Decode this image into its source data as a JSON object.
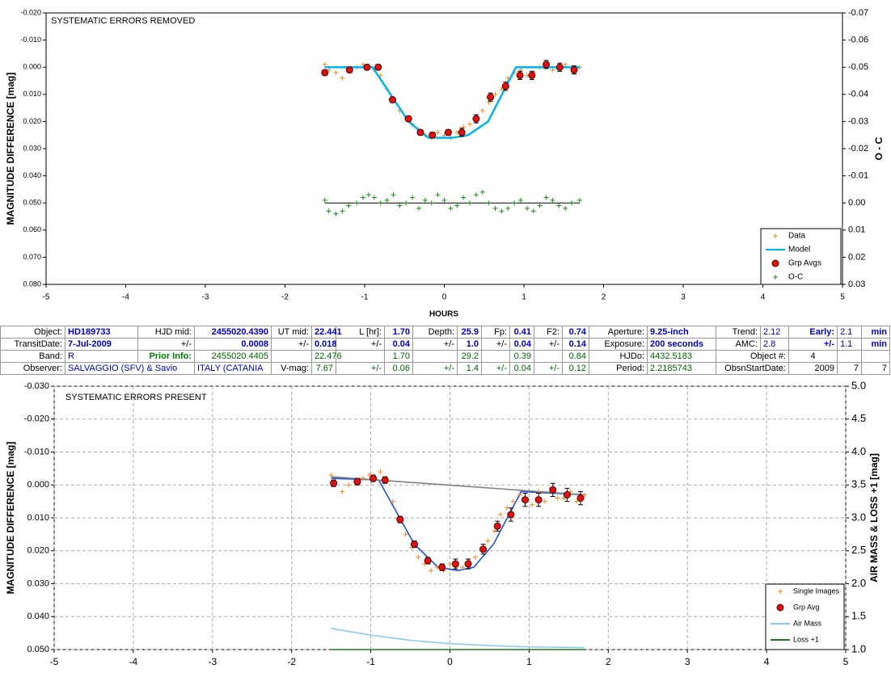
{
  "chart_data": [
    {
      "type": "scatter",
      "title": "SYSTEMATIC ERRORS REMOVED",
      "xlabel": "HOURS",
      "ylabel": "MAGNITUDE DIFFERENCE [mag]",
      "y2label": "O - C",
      "xlim": [
        -5,
        5
      ],
      "xticks": [
        -5,
        -4,
        -3,
        -2,
        -1,
        0,
        1,
        2,
        3,
        4,
        5
      ],
      "ylim": [
        0.08,
        -0.02
      ],
      "yticks": [
        {
          "value": -0.02,
          "label": "-0.020"
        },
        {
          "value": -0.01,
          "label": "-0.010"
        },
        {
          "value": 0,
          "label": "0.000"
        },
        {
          "value": 0.01,
          "label": "0.010"
        },
        {
          "value": 0.02,
          "label": "0.020"
        },
        {
          "value": 0.03,
          "label": "0.030"
        },
        {
          "value": 0.04,
          "label": "0.040"
        },
        {
          "value": 0.05,
          "label": "0.050"
        },
        {
          "value": 0.06,
          "label": "0.060"
        },
        {
          "value": 0.07,
          "label": "0.070"
        },
        {
          "value": 0.08,
          "label": "0.080"
        }
      ],
      "y2lim": [
        0.03,
        -0.07
      ],
      "y2ticks": [
        -0.07,
        -0.06,
        -0.05,
        -0.04,
        -0.03,
        -0.02,
        -0.01,
        {
          "value": 0,
          "label": "0.00"
        },
        0.01,
        0.02,
        0.03
      ],
      "grid": false,
      "legend": "lower right",
      "series": [
        {
          "name": "Data",
          "color": "#f08c1e",
          "marker": "plus",
          "x": [
            -1.5,
            -1.45,
            -1.36,
            -1.28,
            -1.2,
            -1.1,
            -1.02,
            -0.95,
            -0.88,
            -0.8,
            -0.72,
            -0.64,
            -0.56,
            -0.48,
            -0.4,
            -0.32,
            -0.24,
            -0.16,
            -0.08,
            0,
            0.08,
            0.16,
            0.24,
            0.32,
            0.4,
            0.48,
            0.56,
            0.64,
            0.72,
            0.8,
            0.88,
            0.96,
            1.04,
            1.12,
            1.2,
            1.28,
            1.36,
            1.44,
            1.52,
            1.6,
            1.7
          ],
          "values": [
            -0.001,
            0.001,
            0.002,
            0.004,
            0.001,
            0.0,
            -0.001,
            0.0,
            0.001,
            0.003,
            0.008,
            0.012,
            0.016,
            0.019,
            0.021,
            0.023,
            0.025,
            0.026,
            0.024,
            0.025,
            0.026,
            0.024,
            0.022,
            0.021,
            0.019,
            0.016,
            0.013,
            0.01,
            0.008,
            0.004,
            0.002,
            0.001,
            0.003,
            0.002,
            0.0,
            -0.001,
            0.001,
            0.0,
            -0.001,
            0.0,
            0.0
          ]
        },
        {
          "name": "Model",
          "color": "#00b4f0",
          "marker": "none",
          "x": [
            -1.5,
            -0.9,
            -0.45,
            -0.2,
            0.1,
            0.3,
            0.55,
            0.9,
            1.7
          ],
          "values": [
            0,
            0,
            0.02,
            0.026,
            0.026,
            0.025,
            0.02,
            0,
            0
          ]
        },
        {
          "name": "Grp Avgs",
          "color": "#e01010",
          "marker": "circle",
          "x": [
            -1.5,
            -1.19,
            -0.97,
            -0.83,
            -0.65,
            -0.45,
            -0.3,
            -0.15,
            0.05,
            0.22,
            0.4,
            0.58,
            0.77,
            0.95,
            1.1,
            1.28,
            1.45,
            1.63
          ],
          "values": [
            0.002,
            0.001,
            0.0,
            0.0,
            0.012,
            0.019,
            0.024,
            0.025,
            0.024,
            0.024,
            0.019,
            0.011,
            0.007,
            0.003,
            0.003,
            -0.001,
            0.0,
            0.001
          ],
          "errors": [
            0.001,
            0.001,
            0.001,
            0.001,
            0.001,
            0.001,
            0.001,
            0.001,
            0.001,
            0.0015,
            0.0015,
            0.0015,
            0.0015,
            0.0015,
            0.0015,
            0.0015,
            0.0015,
            0.0015
          ]
        },
        {
          "name": "O-C",
          "color": "#1e8c1e",
          "marker": "plus",
          "axis": "y2",
          "x": [
            -1.5,
            -1.45,
            -1.36,
            -1.28,
            -1.2,
            -1.1,
            -1.02,
            -0.95,
            -0.88,
            -0.8,
            -0.72,
            -0.64,
            -0.56,
            -0.48,
            -0.4,
            -0.32,
            -0.24,
            -0.16,
            -0.08,
            0,
            0.08,
            0.16,
            0.24,
            0.32,
            0.4,
            0.48,
            0.56,
            0.64,
            0.72,
            0.8,
            0.88,
            0.96,
            1.04,
            1.12,
            1.2,
            1.28,
            1.36,
            1.44,
            1.52,
            1.6,
            1.7
          ],
          "values": [
            -0.001,
            0.003,
            0.004,
            0.003,
            0.001,
            0.0,
            -0.002,
            -0.003,
            -0.002,
            0.0,
            -0.001,
            -0.003,
            0.001,
            0.0,
            -0.002,
            0.002,
            -0.001,
            0.0,
            -0.003,
            -0.001,
            0.002,
            0.001,
            -0.002,
            0.0,
            -0.003,
            -0.004,
            0.0,
            0.002,
            0.003,
            0.002,
            0.0,
            -0.001,
            0.002,
            0.003,
            0.001,
            -0.002,
            -0.001,
            0.001,
            0.002,
            0.0,
            -0.001
          ]
        }
      ]
    },
    {
      "type": "scatter",
      "title": "SYSTEMATIC ERRORS PRESENT",
      "ylabel": "MAGNITUDE DIFFERENCE [mag]",
      "y2label": "AIR MASS & LOSS +1 [mag]",
      "xlim": [
        -5,
        5
      ],
      "xticks": [
        -5,
        -4,
        -3,
        -2,
        -1,
        0,
        1,
        2,
        3,
        4,
        5
      ],
      "ylim": [
        0.05,
        -0.03
      ],
      "yticks": [
        {
          "value": -0.03,
          "label": "-0.030"
        },
        {
          "value": -0.02,
          "label": "-0.020"
        },
        {
          "value": -0.01,
          "label": "-0.010"
        },
        {
          "value": 0,
          "label": "0.000"
        },
        {
          "value": 0.01,
          "label": "0.010"
        },
        {
          "value": 0.02,
          "label": "0.020"
        },
        {
          "value": 0.03,
          "label": "0.030"
        },
        {
          "value": 0.04,
          "label": "0.040"
        },
        {
          "value": 0.05,
          "label": "0.050"
        }
      ],
      "y2lim": [
        1.0,
        5.0
      ],
      "y2ticks": [
        {
          "value": 1,
          "label": "1.0"
        },
        1.5,
        {
          "value": 2,
          "label": "2.0"
        },
        2.5,
        {
          "value": 3,
          "label": "3.0"
        },
        3.5,
        {
          "value": 4,
          "label": "4.0"
        },
        4.5,
        {
          "value": 5,
          "label": "5.0"
        }
      ],
      "grid": true,
      "legend": "lower right",
      "series": [
        {
          "color": "#1f4fe0",
          "marker": "none",
          "x": [
            -1.5,
            -0.9,
            -0.45,
            -0.15,
            0.1,
            0.3,
            0.55,
            0.9,
            1.7
          ],
          "values": [
            -0.002,
            -0.0015,
            0.018,
            0.025,
            0.026,
            0.025,
            0.018,
            0.002,
            0.003
          ]
        },
        {
          "color": "#808080",
          "marker": "none",
          "x": [
            -1.5,
            1.7
          ],
          "values": [
            -0.0025,
            0.003
          ]
        },
        {
          "name": "Single Images",
          "color": "#f08c1e",
          "marker": "plus",
          "x": [
            -1.5,
            -1.45,
            -1.36,
            -1.28,
            -1.2,
            -1.1,
            -1.02,
            -0.95,
            -0.88,
            -0.8,
            -0.72,
            -0.64,
            -0.56,
            -0.48,
            -0.4,
            -0.32,
            -0.24,
            -0.16,
            -0.08,
            0,
            0.08,
            0.16,
            0.24,
            0.32,
            0.4,
            0.48,
            0.56,
            0.64,
            0.72,
            0.8,
            0.88,
            0.96,
            1.04,
            1.12,
            1.2,
            1.28,
            1.36,
            1.44,
            1.52,
            1.6,
            1.7
          ],
          "values": [
            -0.003,
            -0.001,
            0.002,
            0.0,
            -0.001,
            -0.002,
            -0.003,
            -0.002,
            -0.004,
            -0.001,
            0.005,
            0.01,
            0.015,
            0.019,
            0.022,
            0.024,
            0.026,
            0.025,
            0.026,
            0.024,
            0.025,
            0.025,
            0.023,
            0.022,
            0.02,
            0.017,
            0.014,
            0.009,
            0.007,
            0.005,
            0.003,
            0.005,
            0.006,
            0.002,
            0.005,
            0.001,
            0.004,
            0.004,
            0.002,
            0.005,
            0.003
          ]
        },
        {
          "name": "Grp Avg",
          "color": "#e01010",
          "marker": "circle",
          "x": [
            -1.47,
            -1.17,
            -0.97,
            -0.82,
            -0.63,
            -0.45,
            -0.28,
            -0.1,
            0.07,
            0.23,
            0.42,
            0.6,
            0.77,
            0.95,
            1.12,
            1.3,
            1.48,
            1.65
          ],
          "values": [
            -0.0005,
            -0.001,
            -0.002,
            -0.0015,
            0.0105,
            0.018,
            0.023,
            0.025,
            0.024,
            0.024,
            0.0195,
            0.0125,
            0.009,
            0.0045,
            0.0045,
            0.0015,
            0.003,
            0.004
          ],
          "errors": [
            0.001,
            0.001,
            0.001,
            0.001,
            0.001,
            0.001,
            0.001,
            0.001,
            0.0015,
            0.0015,
            0.0015,
            0.0015,
            0.002,
            0.002,
            0.002,
            0.002,
            0.002,
            0.002
          ]
        },
        {
          "name": "Air Mass",
          "color": "#8ccbf0",
          "marker": "none",
          "axis": "y2",
          "x": [
            -1.5,
            -1.0,
            -0.5,
            0,
            0.5,
            1.0,
            1.7
          ],
          "values": [
            1.32,
            1.22,
            1.14,
            1.09,
            1.06,
            1.04,
            1.03
          ]
        },
        {
          "name": "Loss +1",
          "color": "#1e7a1e",
          "marker": "none",
          "axis": "y2",
          "x": [
            -1.5,
            -1.0,
            -0.5,
            0,
            0.5,
            1.0,
            1.7
          ],
          "values": [
            1.0,
            1.0,
            1.0,
            1.0,
            1.0,
            1.0,
            1.0
          ]
        }
      ]
    }
  ],
  "table": {
    "rows": [
      [
        "Object:",
        "HD189733",
        "HJD mid:",
        "2455020.4390",
        "UT mid:",
        "22.441",
        "L [hr]:",
        "1.70",
        "Depth:",
        "25.9",
        "Fp:",
        "0.41",
        "F2:",
        "0.74",
        "Aperture:",
        "9.25-inch",
        "Trend:",
        "2.12",
        "Early:",
        "2.1",
        "min"
      ],
      [
        "TransitDate:",
        "7-Jul-2009",
        "+/-",
        "0.0008",
        "+/-",
        "0.018",
        "+/-",
        "0.04",
        "+/-",
        "1.0",
        "+/-",
        "0.04",
        "+/-",
        "0.14",
        "Exposure:",
        "200 seconds",
        "AMC:",
        "2.8",
        "+/-",
        "1.1",
        "min"
      ],
      [
        "Band:",
        "R",
        "Prior Info:",
        "2455020.4405",
        "22.476",
        "1.70",
        "29.2",
        "0.39",
        "0.84",
        "HJDo:",
        "4432.5183",
        "Object #:",
        "4"
      ],
      [
        "Observer:",
        "SALVAGGIO (SFV) & Savio",
        "ITALY (CATANIA",
        "V-mag:",
        "7.67",
        "+/-",
        "0.06",
        "+/-",
        "1.4",
        "+/-",
        "0.04",
        "+/-",
        "0.12",
        "Period:",
        "2.2185743",
        "ObsnStartDate:",
        "2009",
        "7",
        "7"
      ]
    ]
  }
}
